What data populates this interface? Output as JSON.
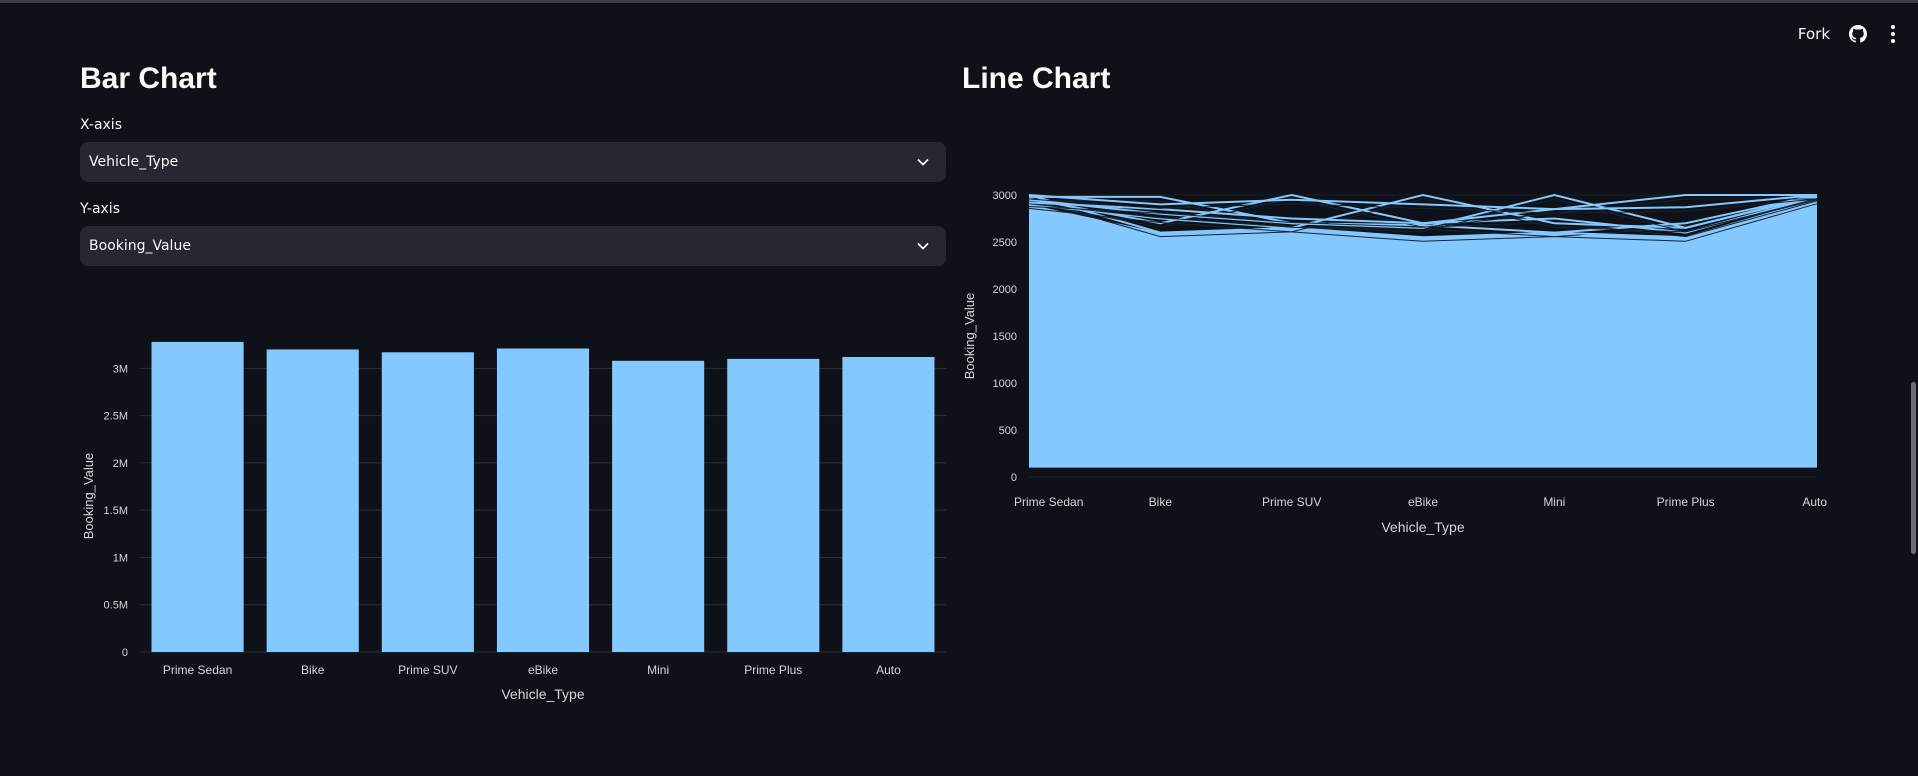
{
  "toolbar": {
    "fork_label": "Fork"
  },
  "icons": {
    "github": "github-icon",
    "menu": "kebab-menu-icon",
    "chevron": "chevron-down-icon"
  },
  "colors": {
    "background": "#0e1117",
    "bar_fill": "#83c9ff",
    "select_bg": "#262730",
    "text": "#fafafa"
  },
  "bar_section": {
    "title": "Bar Chart",
    "x_axis": {
      "label": "X-axis",
      "value": "Vehicle_Type"
    },
    "y_axis": {
      "label": "Y-axis",
      "value": "Booking_Value"
    }
  },
  "line_section": {
    "title": "Line Chart"
  },
  "chart_data": [
    {
      "type": "bar",
      "categories": [
        "Prime Sedan",
        "Bike",
        "Prime SUV",
        "eBike",
        "Mini",
        "Prime Plus",
        "Auto"
      ],
      "values": [
        3280000,
        3200000,
        3170000,
        3210000,
        3080000,
        3100000,
        3120000
      ],
      "xlabel": "Vehicle_Type",
      "ylabel": "Booking_Value",
      "ylim": [
        0,
        3300000
      ],
      "yticks": [
        0,
        500000,
        1000000,
        1500000,
        2000000,
        2500000,
        3000000
      ],
      "ytick_labels": [
        "0",
        "0.5M",
        "1M",
        "1.5M",
        "2M",
        "2.5M",
        "3M"
      ],
      "grid": true,
      "color": "#83c9ff"
    },
    {
      "type": "line",
      "categories": [
        "Prime Sedan",
        "Bike",
        "Prime SUV",
        "eBike",
        "Mini",
        "Prime Plus",
        "Auto"
      ],
      "xlabel": "Vehicle_Type",
      "ylabel": "Booking_Value",
      "ylim": [
        0,
        3000
      ],
      "yticks": [
        0,
        500,
        1000,
        1500,
        2000,
        2500,
        3000
      ],
      "ytick_labels": [
        "0",
        "500",
        "1000",
        "1500",
        "2000",
        "2500",
        "3000"
      ],
      "series": [
        {
          "values": [
            3000,
            2600,
            2650,
            2550,
            2600,
            2700,
            3000
          ]
        },
        {
          "values": [
            2980,
            2980,
            2700,
            2680,
            2600,
            2550,
            2950
          ]
        },
        {
          "values": [
            2960,
            2700,
            3000,
            2700,
            2750,
            2600,
            2980
          ]
        },
        {
          "values": [
            2900,
            2750,
            2650,
            3000,
            2700,
            2650,
            3000
          ]
        },
        {
          "values": [
            2950,
            2800,
            2700,
            2650,
            3000,
            2650,
            2990
          ]
        },
        {
          "values": [
            2920,
            2850,
            2750,
            2700,
            2850,
            3000,
            3000
          ]
        },
        {
          "values": [
            3000,
            2900,
            2950,
            2900,
            2850,
            2870,
            3000
          ]
        }
      ],
      "fill_min": 100,
      "color": "#83c9ff"
    }
  ]
}
